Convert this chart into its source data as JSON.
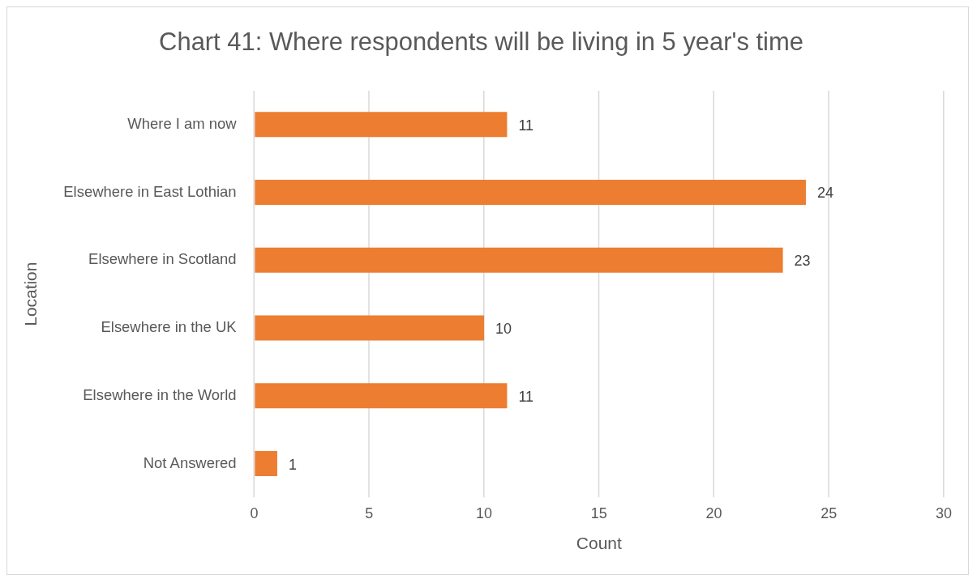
{
  "chart_data": {
    "type": "bar",
    "orientation": "horizontal",
    "title": "Chart 41: Where respondents will be living in 5 year's time",
    "xlabel": "Count",
    "ylabel": "Location",
    "categories": [
      "Where I am now",
      "Elsewhere in East Lothian",
      "Elsewhere in Scotland",
      "Elsewhere in the UK",
      "Elsewhere in the World",
      "Not Answered"
    ],
    "values": [
      11,
      24,
      23,
      10,
      11,
      1
    ],
    "color": "#ed7d31",
    "xlim": [
      0,
      30
    ],
    "xticks": [
      0,
      5,
      10,
      15,
      20,
      25,
      30
    ],
    "grid": "x",
    "legend": false,
    "data_labels": true
  }
}
